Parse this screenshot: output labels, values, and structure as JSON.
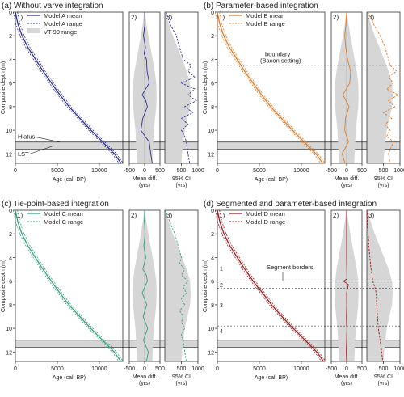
{
  "colors": {
    "A": "#2f2f8f",
    "B": "#e07b2a",
    "C": "#3aa07a",
    "D": "#9c1c1c",
    "band": "#d6d6d6",
    "axis": "#333333"
  },
  "shared": {
    "ylabel": "Composite depth (m)",
    "y_ticks": [
      0,
      2,
      4,
      6,
      8,
      10,
      12
    ],
    "depth_range": [
      0,
      12.8
    ],
    "age_ticks": [
      0,
      5000,
      10000
    ],
    "age_range": [
      0,
      12800
    ],
    "age_xlabel": "Age (cal. BP)",
    "diff_ticks": [
      -500,
      0,
      500
    ],
    "diff_range": [
      -500,
      500
    ],
    "diff_xlabel_1": "Mean diff.",
    "diff_xlabel_2": "(yrs)",
    "ci_ticks": [
      500,
      1000
    ],
    "ci_range": [
      0,
      1000
    ],
    "ci_xlabel_1": "95% CI",
    "ci_xlabel_2": "(yrs)",
    "panel_1": "1)",
    "panel_2": "2)",
    "panel_3": "3)"
  },
  "chart_data": [
    {
      "type": "line",
      "key": "a",
      "model": "A",
      "title": "(a) Without varve integration",
      "legend": [
        "Model A mean",
        "Model A range",
        "VT-99 range"
      ],
      "annotations": {
        "hiatus": "Hiatus",
        "lst": "LST"
      },
      "depth_age": {
        "depth": [
          0,
          1,
          2,
          3,
          4,
          5,
          6,
          7,
          8,
          9,
          10,
          11,
          12,
          12.8
        ],
        "age": [
          0,
          300,
          800,
          1500,
          2400,
          3300,
          4300,
          5300,
          6400,
          7700,
          9000,
          10400,
          11800,
          12600
        ]
      },
      "mean_diff": {
        "depth": [
          0,
          1,
          2,
          3,
          3.5,
          4,
          5,
          6,
          7,
          7.5,
          8,
          9,
          10,
          11,
          12,
          12.8
        ],
        "value": [
          0,
          10,
          -40,
          30,
          -20,
          60,
          80,
          150,
          -80,
          40,
          90,
          -60,
          -120,
          150,
          200,
          250
        ]
      },
      "ci": {
        "depth": [
          0,
          1,
          2,
          3,
          4,
          4.5,
          5,
          5.5,
          6,
          6.5,
          7,
          7.5,
          8,
          8.5,
          9,
          9.5,
          10,
          10.5,
          11,
          12,
          12.8
        ],
        "value": [
          40,
          150,
          350,
          450,
          550,
          800,
          700,
          900,
          500,
          900,
          700,
          950,
          600,
          850,
          500,
          700,
          500,
          600,
          650,
          700,
          750
        ]
      },
      "vt99_band": {
        "depth": [
          0,
          1,
          2,
          3,
          4,
          5,
          6,
          7,
          8,
          9,
          10,
          11,
          12,
          12.8
        ],
        "half_width": [
          10,
          60,
          120,
          190,
          260,
          330,
          380,
          390,
          380,
          340,
          300,
          280,
          260,
          250
        ]
      }
    },
    {
      "type": "line",
      "key": "b",
      "model": "B",
      "title": "(b) Parameter-based integration",
      "legend": [
        "Model B mean",
        "Model B range"
      ],
      "annotations": {
        "boundary_1": "boundary",
        "boundary_2": "(Bacon setting)",
        "boundary_depth": 4.5
      },
      "depth_age": {
        "depth": [
          0,
          1,
          2,
          3,
          4,
          5,
          6,
          7,
          8,
          9,
          10,
          11,
          12,
          12.8
        ],
        "age": [
          0,
          280,
          760,
          1450,
          2350,
          3250,
          4250,
          5250,
          6350,
          7650,
          8950,
          10350,
          11750,
          12550
        ]
      },
      "mean_diff": {
        "depth": [
          0,
          1,
          2,
          3,
          4,
          5,
          6,
          7,
          8,
          9,
          10,
          11,
          12,
          12.8
        ],
        "value": [
          0,
          -20,
          -60,
          -30,
          30,
          130,
          100,
          -120,
          80,
          -40,
          -60,
          60,
          -150,
          -50
        ]
      },
      "ci": {
        "depth": [
          0,
          1,
          2,
          3,
          4,
          4.5,
          5,
          5.5,
          6,
          6.5,
          7,
          7.5,
          8,
          8.5,
          9,
          9.5,
          10,
          10.5,
          11,
          12,
          12.8
        ],
        "value": [
          30,
          200,
          400,
          550,
          650,
          700,
          900,
          650,
          800,
          600,
          950,
          650,
          850,
          500,
          750,
          550,
          700,
          600,
          800,
          650,
          700
        ]
      },
      "vt99_band": {
        "depth": [
          0,
          1,
          2,
          3,
          4,
          5,
          6,
          7,
          8,
          9,
          10,
          11,
          12,
          12.8
        ],
        "half_width": [
          10,
          60,
          120,
          190,
          260,
          330,
          380,
          390,
          380,
          340,
          300,
          280,
          260,
          250
        ]
      }
    },
    {
      "type": "line",
      "key": "c",
      "model": "C",
      "title": "(c) Tie-point-based integration",
      "legend": [
        "Model C mean",
        "Model C range"
      ],
      "annotations": {},
      "depth_age": {
        "depth": [
          0,
          1,
          2,
          3,
          4,
          5,
          6,
          7,
          8,
          9,
          10,
          11,
          12,
          12.8
        ],
        "age": [
          0,
          300,
          780,
          1480,
          2380,
          3280,
          4280,
          5300,
          6380,
          7680,
          8980,
          10380,
          11780,
          12580
        ]
      },
      "mean_diff": {
        "depth": [
          0,
          1,
          2,
          3,
          4,
          5,
          5.5,
          6,
          7,
          8,
          9,
          10,
          11,
          12,
          12.8
        ],
        "value": [
          0,
          -10,
          20,
          -30,
          40,
          -60,
          60,
          90,
          -80,
          70,
          -50,
          100,
          -40,
          120,
          60
        ]
      },
      "ci": {
        "depth": [
          0,
          1,
          2,
          3,
          4,
          4.5,
          5,
          5.5,
          6,
          6.5,
          7,
          7.5,
          8,
          8.5,
          9,
          9.5,
          10,
          10.5,
          11,
          12,
          12.8
        ],
        "value": [
          20,
          150,
          300,
          400,
          500,
          450,
          600,
          500,
          700,
          550,
          650,
          500,
          600,
          450,
          550,
          500,
          600,
          500,
          550,
          600,
          650
        ]
      },
      "vt99_band": {
        "depth": [
          0,
          1,
          2,
          3,
          4,
          5,
          6,
          7,
          8,
          9,
          10,
          11,
          12,
          12.8
        ],
        "half_width": [
          10,
          60,
          120,
          190,
          260,
          330,
          380,
          390,
          380,
          340,
          300,
          280,
          260,
          250
        ]
      }
    },
    {
      "type": "line",
      "key": "d",
      "model": "D",
      "title": "(d) Segmented and parameter-based integration",
      "legend": [
        "Model D mean",
        "Model D range"
      ],
      "annotations": {
        "segment_borders": "Segment borders",
        "segment_labels": [
          "1",
          "2",
          "3",
          "4"
        ],
        "segment_depths": [
          6.0,
          6.6,
          9.8
        ]
      },
      "depth_age": {
        "depth": [
          0,
          1,
          2,
          3,
          4,
          5,
          6,
          6.6,
          7,
          8,
          9,
          9.8,
          10,
          11,
          12,
          12.8
        ],
        "age": [
          0,
          300,
          790,
          1480,
          2370,
          3270,
          4270,
          4900,
          5400,
          6450,
          7700,
          8750,
          9050,
          10450,
          11850,
          12650
        ]
      },
      "mean_diff": {
        "depth": [
          0,
          2,
          4,
          5.8,
          6.0,
          6.3,
          6.6,
          7,
          8,
          9,
          9.8,
          10,
          11,
          12,
          12.8
        ],
        "value": [
          0,
          0,
          0,
          10,
          -100,
          60,
          30,
          0,
          5,
          -5,
          0,
          10,
          0,
          -10,
          0
        ]
      },
      "ci": {
        "depth": [
          0,
          1,
          2,
          3,
          4,
          5,
          6,
          6.6,
          7,
          8,
          9,
          10,
          11,
          12,
          12.8
        ],
        "value": [
          5,
          20,
          40,
          60,
          90,
          130,
          180,
          250,
          280,
          300,
          320,
          350,
          400,
          450,
          480
        ]
      },
      "vt99_band": {
        "depth": [
          0,
          1,
          2,
          3,
          4,
          5,
          6,
          7,
          8,
          9,
          10,
          11,
          12,
          12.8
        ],
        "half_width": [
          10,
          60,
          120,
          190,
          260,
          330,
          380,
          390,
          380,
          340,
          300,
          280,
          260,
          250
        ]
      }
    }
  ]
}
